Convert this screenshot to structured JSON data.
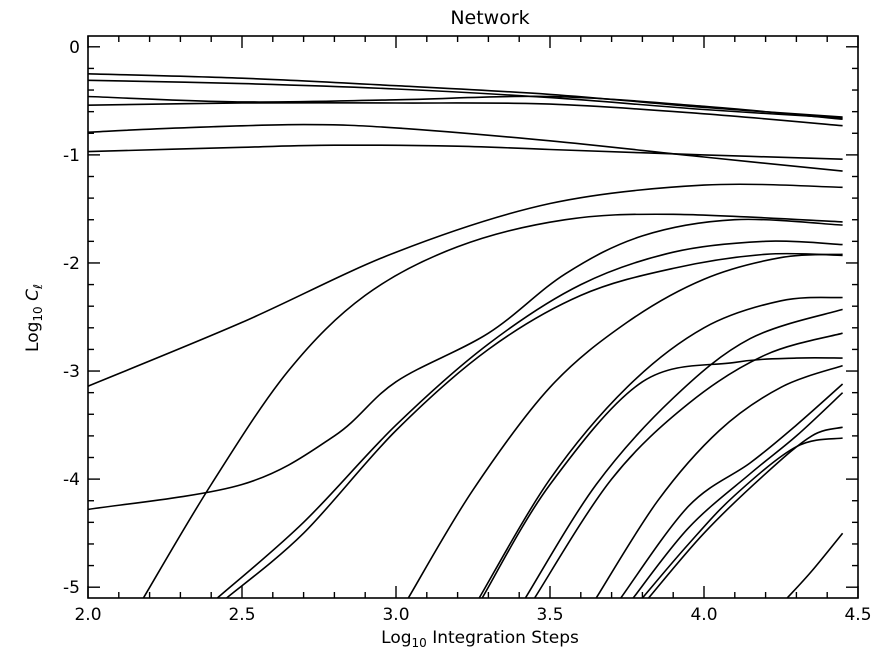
{
  "chart_data": {
    "type": "line",
    "title": "Network",
    "xlabel": "Log",
    "xlabel_sub": "10",
    "xlabel_rest": " Integration Steps",
    "ylabel": "Log",
    "ylabel_sub": "10",
    "ylabel_var": "C",
    "ylabel_var_sub": "ℓ",
    "xlim": [
      2.0,
      4.5
    ],
    "ylim": [
      -5.1,
      0.1
    ],
    "xticks": [
      {
        "value": 2.0,
        "label": "2.0"
      },
      {
        "value": 2.5,
        "label": "2.5"
      },
      {
        "value": 3.0,
        "label": "3.0"
      },
      {
        "value": 3.5,
        "label": "3.5"
      },
      {
        "value": 4.0,
        "label": "4.0"
      },
      {
        "value": 4.5,
        "label": "4.5"
      }
    ],
    "yticks": [
      {
        "value": 0,
        "label": "0"
      },
      {
        "value": -1,
        "label": "-1"
      },
      {
        "value": -2,
        "label": "-2"
      },
      {
        "value": -3,
        "label": "-3"
      },
      {
        "value": -4,
        "label": "-4"
      },
      {
        "value": -5,
        "label": "-5"
      }
    ],
    "x_minor_step": 0.1,
    "y_minor_step": 0.2,
    "grid": false,
    "legend": "none",
    "series": [
      {
        "x": [
          2.0,
          2.5,
          3.0,
          3.5,
          4.0,
          4.45
        ],
        "y": [
          -0.25,
          -0.29,
          -0.36,
          -0.44,
          -0.56,
          -0.65
        ]
      },
      {
        "x": [
          2.0,
          2.5,
          3.0,
          3.5,
          4.0,
          4.45
        ],
        "y": [
          -0.31,
          -0.34,
          -0.39,
          -0.47,
          -0.58,
          -0.66
        ]
      },
      {
        "x": [
          2.0,
          2.5,
          3.0,
          3.5,
          4.0,
          4.45
        ],
        "y": [
          -0.46,
          -0.51,
          -0.49,
          -0.46,
          -0.55,
          -0.67
        ]
      },
      {
        "x": [
          2.0,
          2.5,
          3.0,
          3.5,
          4.0,
          4.45
        ],
        "y": [
          -0.54,
          -0.52,
          -0.52,
          -0.53,
          -0.62,
          -0.73
        ]
      },
      {
        "x": [
          2.0,
          2.3,
          2.7,
          3.0,
          3.5,
          4.0,
          4.45
        ],
        "y": [
          -0.79,
          -0.75,
          -0.72,
          -0.75,
          -0.87,
          -1.02,
          -1.15
        ]
      },
      {
        "x": [
          2.0,
          2.5,
          2.8,
          3.2,
          3.5,
          4.0,
          4.45
        ],
        "y": [
          -0.97,
          -0.93,
          -0.91,
          -0.92,
          -0.95,
          -1.0,
          -1.04
        ]
      },
      {
        "x": [
          2.0,
          2.5,
          3.0,
          3.5,
          4.0,
          4.45
        ],
        "y": [
          -3.14,
          -2.55,
          -1.9,
          -1.45,
          -1.28,
          -1.3
        ]
      },
      {
        "x": [
          2.18,
          2.4,
          2.65,
          2.9,
          3.2,
          3.55,
          3.9,
          4.45
        ],
        "y": [
          -5.1,
          -4.05,
          -3.0,
          -2.3,
          -1.85,
          -1.6,
          -1.55,
          -1.62
        ]
      },
      {
        "x": [
          2.0,
          2.5,
          2.8,
          3.0,
          3.3,
          3.55,
          3.8,
          4.1,
          4.45
        ],
        "y": [
          -4.28,
          -4.05,
          -3.6,
          -3.1,
          -2.65,
          -2.1,
          -1.75,
          -1.6,
          -1.65
        ]
      },
      {
        "x": [
          2.42,
          2.7,
          3.0,
          3.3,
          3.6,
          3.9,
          4.2,
          4.45
        ],
        "y": [
          -5.1,
          -4.4,
          -3.5,
          -2.75,
          -2.2,
          -1.9,
          -1.8,
          -1.83
        ]
      },
      {
        "x": [
          2.45,
          2.7,
          3.0,
          3.3,
          3.6,
          3.9,
          4.2,
          4.45
        ],
        "y": [
          -5.1,
          -4.5,
          -3.55,
          -2.8,
          -2.3,
          -2.05,
          -1.92,
          -1.93
        ]
      },
      {
        "x": [
          3.04,
          3.25,
          3.5,
          3.75,
          4.0,
          4.25,
          4.45
        ],
        "y": [
          -5.1,
          -4.1,
          -3.15,
          -2.55,
          -2.15,
          -1.95,
          -1.92
        ]
      },
      {
        "x": [
          3.27,
          3.5,
          3.75,
          4.0,
          4.25,
          4.45
        ],
        "y": [
          -5.1,
          -4.0,
          -3.15,
          -2.6,
          -2.35,
          -2.32
        ]
      },
      {
        "x": [
          3.28,
          3.5,
          3.8,
          4.1,
          4.3,
          4.45
        ],
        "y": [
          -5.1,
          -4.05,
          -3.1,
          -2.92,
          -2.88,
          -2.88
        ]
      },
      {
        "x": [
          3.42,
          3.65,
          3.9,
          4.15,
          4.45
        ],
        "y": [
          -5.1,
          -4.05,
          -3.25,
          -2.7,
          -2.43
        ]
      },
      {
        "x": [
          3.45,
          3.7,
          3.95,
          4.2,
          4.45
        ],
        "y": [
          -5.1,
          -4.0,
          -3.3,
          -2.85,
          -2.65
        ]
      },
      {
        "x": [
          3.65,
          3.85,
          4.05,
          4.25,
          4.45
        ],
        "y": [
          -5.1,
          -4.2,
          -3.55,
          -3.15,
          -2.95
        ]
      },
      {
        "x": [
          3.73,
          3.95,
          4.15,
          4.3,
          4.45
        ],
        "y": [
          -5.1,
          -4.25,
          -3.85,
          -3.5,
          -3.12
        ]
      },
      {
        "x": [
          3.77,
          3.95,
          4.15,
          4.3,
          4.45
        ],
        "y": [
          -5.1,
          -4.45,
          -3.95,
          -3.6,
          -3.2
        ]
      },
      {
        "x": [
          3.8,
          3.95,
          4.1,
          4.3,
          4.45
        ],
        "y": [
          -5.1,
          -4.6,
          -4.15,
          -3.7,
          -3.62
        ]
      },
      {
        "x": [
          3.82,
          4.0,
          4.2,
          4.35,
          4.45
        ],
        "y": [
          -5.1,
          -4.5,
          -3.95,
          -3.6,
          -3.52
        ]
      },
      {
        "x": [
          4.27,
          4.35,
          4.45
        ],
        "y": [
          -5.1,
          -4.85,
          -4.5
        ]
      }
    ]
  }
}
